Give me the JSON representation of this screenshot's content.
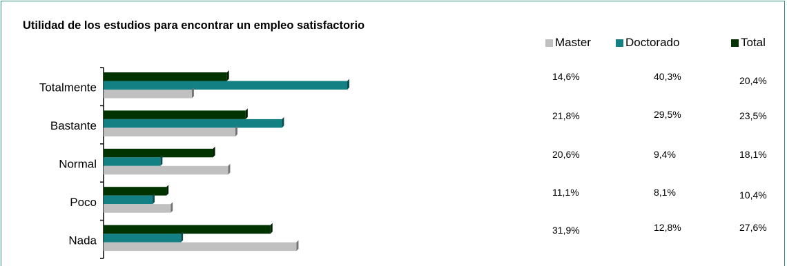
{
  "colors": {
    "frame": "#2e8b7a",
    "Master": "#c0c0c0",
    "Doctorado": "#138084",
    "Total": "#003300"
  },
  "chart_data": {
    "type": "bar",
    "orientation": "horizontal",
    "title": "Utilidad de los estudios para encontrar un empleo satisfactorio",
    "categories": [
      "Totalmente",
      "Bastante",
      "Normal",
      "Poco",
      "Nada"
    ],
    "series": [
      {
        "name": "Master",
        "values": [
          14.6,
          21.8,
          20.6,
          11.1,
          31.9
        ]
      },
      {
        "name": "Doctorado",
        "values": [
          40.3,
          29.5,
          9.4,
          8.1,
          12.8
        ]
      },
      {
        "name": "Total",
        "values": [
          20.4,
          23.5,
          18.1,
          10.4,
          27.6
        ]
      }
    ],
    "value_labels": {
      "Master": [
        "14,6%",
        "21,8%",
        "20,6%",
        "11,1%",
        "31,9%"
      ],
      "Doctorado": [
        "40,3%",
        "29,5%",
        "9,4%",
        "8,1%",
        "12,8%"
      ],
      "Total": [
        "20,4%",
        "23,5%",
        "18,1%",
        "10,4%",
        "27,6%"
      ]
    },
    "xlim": [
      0,
      50
    ],
    "grid": false,
    "legend_position": "top-right"
  }
}
